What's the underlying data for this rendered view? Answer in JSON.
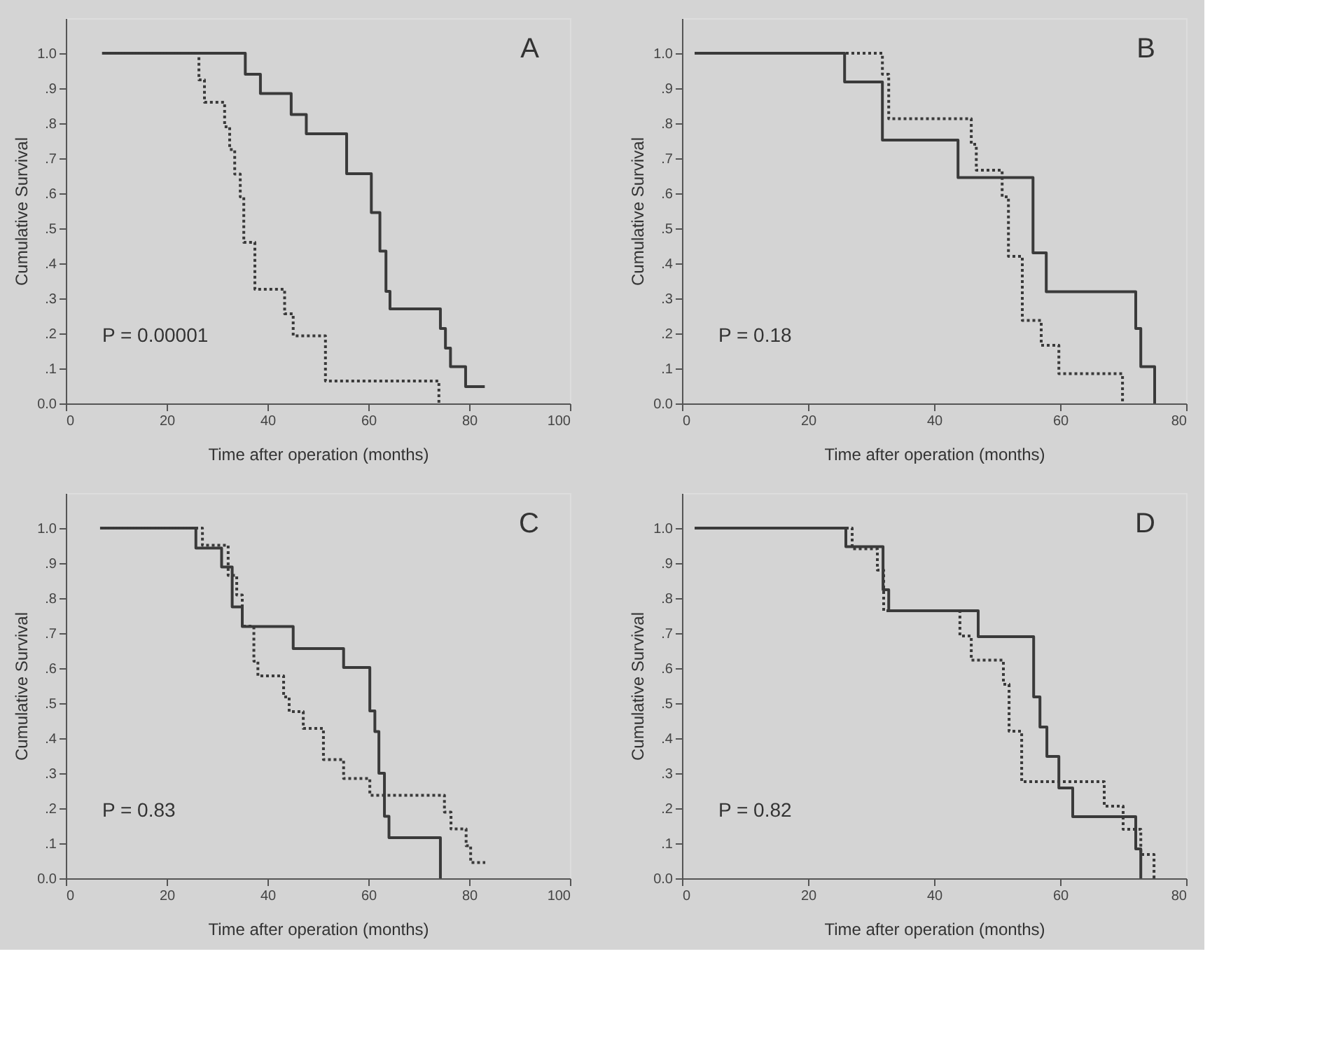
{
  "chart_data": [
    {
      "type": "step",
      "xlabel": "Time after operation (months)",
      "ylabel": "Cumulative Survival",
      "annotations": [
        "A",
        "P = 0.00001"
      ],
      "xlim": [
        0,
        100
      ],
      "xticks": [
        0,
        20,
        40,
        60,
        80,
        100
      ],
      "ylim": [
        0,
        1.1
      ],
      "yticks": [
        {
          "value": 0,
          "label": "0.0"
        },
        {
          "value": 0.1,
          "label": ".1"
        },
        {
          "value": 0.2,
          "label": ".2"
        },
        {
          "value": 0.3,
          "label": ".3"
        },
        {
          "value": 0.4,
          "label": ".4"
        },
        {
          "value": 0.5,
          "label": ".5"
        },
        {
          "value": 0.6,
          "label": ".6"
        },
        {
          "value": 0.7,
          "label": ".7"
        },
        {
          "value": 0.8,
          "label": ".8"
        },
        {
          "value": 0.9,
          "label": ".9"
        },
        {
          "value": 1.0,
          "label": "1.0"
        }
      ],
      "grid": false,
      "series": [
        {
          "color": "#3a3a3a",
          "line_style": "solid",
          "x": [
            7.2,
            35.6,
            38.6,
            44.7,
            47.7,
            55.7,
            60.6,
            62.3,
            63.5,
            64.3,
            74.3,
            75.3,
            76.3,
            79.3,
            83.1
          ],
          "values": [
            1.0,
            0.94,
            0.885,
            0.825,
            0.77,
            0.656,
            0.545,
            0.435,
            0.32,
            0.27,
            0.214,
            0.158,
            0.105,
            0.048,
            0.048
          ]
        },
        {
          "color": "#3a3a3a",
          "line_style": "dotted",
          "x": [
            7.2,
            26.4,
            27.5,
            31.5,
            32.5,
            33.5,
            34.6,
            35.3,
            37.5,
            43.4,
            45.1,
            51.5,
            74.0
          ],
          "values": [
            1.0,
            0.924,
            0.86,
            0.79,
            0.725,
            0.655,
            0.59,
            0.46,
            0.326,
            0.256,
            0.193,
            0.064,
            0.0
          ]
        }
      ]
    },
    {
      "type": "step",
      "xlabel": "Time after operation (months)",
      "ylabel": "Cumulative Survival",
      "annotations": [
        "B",
        "P = 0.18"
      ],
      "xlim": [
        0,
        80
      ],
      "xticks": [
        0,
        20,
        40,
        60,
        80
      ],
      "ylim": [
        0,
        1.1
      ],
      "yticks": [
        {
          "value": 0,
          "label": "0.0"
        },
        {
          "value": 0.1,
          "label": ".1"
        },
        {
          "value": 0.2,
          "label": ".2"
        },
        {
          "value": 0.3,
          "label": ".3"
        },
        {
          "value": 0.4,
          "label": ".4"
        },
        {
          "value": 0.5,
          "label": ".5"
        },
        {
          "value": 0.6,
          "label": ".6"
        },
        {
          "value": 0.7,
          "label": ".7"
        },
        {
          "value": 0.8,
          "label": ".8"
        },
        {
          "value": 0.9,
          "label": ".9"
        },
        {
          "value": 1.0,
          "label": "1.0"
        }
      ],
      "grid": false,
      "series": [
        {
          "color": "#3a3a3a",
          "line_style": "solid",
          "x": [
            2.0,
            25.8,
            31.8,
            43.8,
            55.7,
            57.8,
            72.0,
            72.8,
            75.0
          ],
          "values": [
            1.0,
            0.918,
            0.752,
            0.645,
            0.43,
            0.319,
            0.214,
            0.105,
            0.0
          ]
        },
        {
          "color": "#3a3a3a",
          "line_style": "dotted",
          "x": [
            2.0,
            31.8,
            32.8,
            45.9,
            46.7,
            50.8,
            51.8,
            54.0,
            57.0,
            59.8,
            69.9
          ],
          "values": [
            1.0,
            0.94,
            0.813,
            0.74,
            0.666,
            0.59,
            0.42,
            0.237,
            0.166,
            0.085,
            0.0
          ]
        }
      ]
    },
    {
      "type": "step",
      "xlabel": "Time after operation (months)",
      "ylabel": "Cumulative Survival",
      "annotations": [
        "C",
        "P = 0.83"
      ],
      "xlim": [
        0,
        100
      ],
      "xticks": [
        0,
        20,
        40,
        60,
        80,
        100
      ],
      "ylim": [
        0,
        1.1
      ],
      "yticks": [
        {
          "value": 0,
          "label": "0.0"
        },
        {
          "value": 0.1,
          "label": ".1"
        },
        {
          "value": 0.2,
          "label": ".2"
        },
        {
          "value": 0.3,
          "label": ".3"
        },
        {
          "value": 0.4,
          "label": ".4"
        },
        {
          "value": 0.5,
          "label": ".5"
        },
        {
          "value": 0.6,
          "label": ".6"
        },
        {
          "value": 0.7,
          "label": ".7"
        },
        {
          "value": 0.8,
          "label": ".8"
        },
        {
          "value": 0.9,
          "label": ".9"
        },
        {
          "value": 1.0,
          "label": "1.0"
        }
      ],
      "grid": false,
      "series": [
        {
          "color": "#3a3a3a",
          "line_style": "solid",
          "x": [
            6.8,
            25.8,
            30.9,
            33.0,
            35.0,
            45.1,
            55.1,
            60.3,
            61.3,
            62.1,
            63.2,
            64.1,
            74.3
          ],
          "values": [
            1.0,
            0.943,
            0.889,
            0.775,
            0.719,
            0.656,
            0.602,
            0.478,
            0.419,
            0.3,
            0.177,
            0.116,
            0.0
          ]
        },
        {
          "color": "#3a3a3a",
          "line_style": "dotted",
          "x": [
            6.8,
            27.1,
            32.2,
            33.9,
            35.0,
            37.3,
            38.1,
            43.2,
            44.3,
            47.1,
            51.1,
            55.1,
            60.3,
            75.1,
            76.4,
            79.4,
            80.3,
            83.2
          ],
          "values": [
            1.0,
            0.951,
            0.865,
            0.809,
            0.72,
            0.62,
            0.578,
            0.518,
            0.476,
            0.428,
            0.339,
            0.285,
            0.237,
            0.189,
            0.141,
            0.093,
            0.045,
            0.045
          ]
        }
      ]
    },
    {
      "type": "step",
      "xlabel": "Time after operation (months)",
      "ylabel": "Cumulative Survival",
      "annotations": [
        "D",
        "P = 0.82"
      ],
      "xlim": [
        0,
        80
      ],
      "xticks": [
        0,
        20,
        40,
        60,
        80
      ],
      "ylim": [
        0,
        1.1
      ],
      "yticks": [
        {
          "value": 0,
          "label": "0.0"
        },
        {
          "value": 0.1,
          "label": ".1"
        },
        {
          "value": 0.2,
          "label": ".2"
        },
        {
          "value": 0.3,
          "label": ".3"
        },
        {
          "value": 0.4,
          "label": ".4"
        },
        {
          "value": 0.5,
          "label": ".5"
        },
        {
          "value": 0.6,
          "label": ".6"
        },
        {
          "value": 0.7,
          "label": ".7"
        },
        {
          "value": 0.8,
          "label": ".8"
        },
        {
          "value": 0.9,
          "label": ".9"
        },
        {
          "value": 1.0,
          "label": "1.0"
        }
      ],
      "grid": false,
      "series": [
        {
          "color": "#3a3a3a",
          "line_style": "solid",
          "x": [
            2.0,
            26.0,
            31.9,
            32.8,
            47.0,
            55.8,
            56.8,
            57.9,
            59.8,
            62.0,
            72.0,
            72.8
          ],
          "values": [
            1.0,
            0.947,
            0.824,
            0.764,
            0.69,
            0.518,
            0.432,
            0.348,
            0.258,
            0.176,
            0.084,
            0.0
          ]
        },
        {
          "color": "#3a3a3a",
          "line_style": "dotted",
          "x": [
            2.0,
            27.0,
            31.0,
            32.0,
            44.1,
            45.9,
            51.0,
            51.9,
            53.9,
            67.0,
            70.0,
            72.8,
            74.9
          ],
          "values": [
            1.0,
            0.941,
            0.88,
            0.764,
            0.692,
            0.623,
            0.554,
            0.42,
            0.276,
            0.206,
            0.14,
            0.068,
            0.0
          ]
        }
      ]
    }
  ]
}
